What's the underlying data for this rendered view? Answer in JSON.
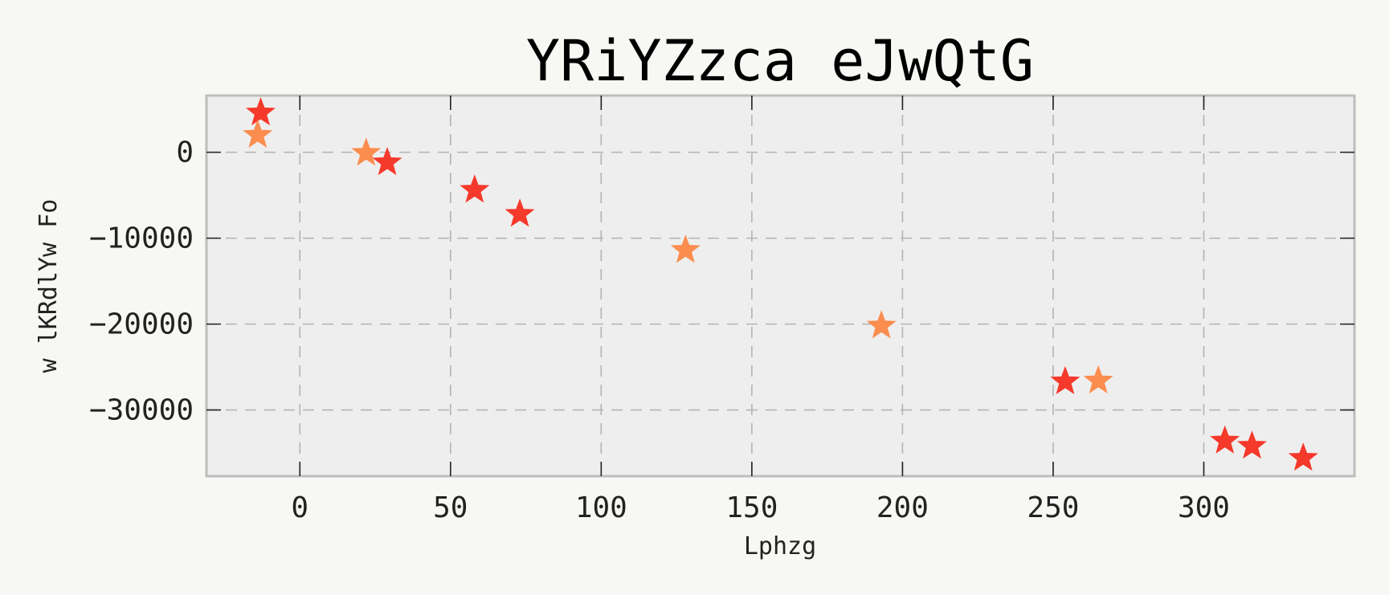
{
  "chart_data": {
    "type": "scatter",
    "title": "YRiYZzca eJwQtG",
    "xlabel": "Lphzg",
    "ylabel": "w lKRdlYw Fo",
    "xlim": [
      -31,
      350
    ],
    "ylim": [
      -37700,
      6600
    ],
    "x_ticks": [
      0,
      50,
      100,
      150,
      200,
      250,
      300
    ],
    "y_ticks": [
      0,
      -10000,
      -20000,
      -30000
    ],
    "y_tick_labels": [
      "0",
      "−10000",
      "−20000",
      "−30000"
    ],
    "grid": true,
    "marker": "star",
    "series": [
      {
        "color": "#f5392b",
        "points": [
          {
            "x": -13,
            "y": 4600
          },
          {
            "x": 29,
            "y": -1200
          },
          {
            "x": 58,
            "y": -4400
          },
          {
            "x": 73,
            "y": -7200
          },
          {
            "x": 254,
            "y": -26700
          },
          {
            "x": 307,
            "y": -33600
          },
          {
            "x": 316,
            "y": -34200
          },
          {
            "x": 333,
            "y": -35600
          }
        ]
      },
      {
        "color": "#fb8d4f",
        "points": [
          {
            "x": -14,
            "y": 2000
          },
          {
            "x": 22,
            "y": -100
          },
          {
            "x": 128,
            "y": -11400
          },
          {
            "x": 193,
            "y": -20200
          },
          {
            "x": 265,
            "y": -26600
          }
        ]
      }
    ]
  }
}
